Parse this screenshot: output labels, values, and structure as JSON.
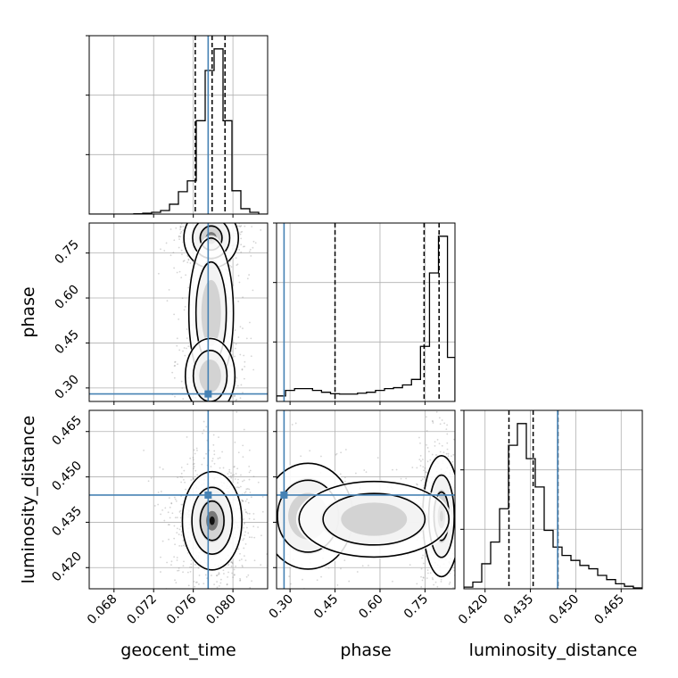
{
  "chart_data": {
    "type": "corner",
    "parameters": [
      "geocent_time",
      "phase",
      "luminosity_distance"
    ],
    "truths": {
      "geocent_time": 0.0775,
      "phase": 0.28,
      "luminosity_distance": 0.444
    },
    "colors": {
      "truth": "#4682b4",
      "hist": "#000000",
      "grid": "#b0b0b0",
      "scatter": "#888888"
    },
    "grid": true,
    "ranges": {
      "geocent_time": [
        0.0655,
        0.0835
      ],
      "phase": [
        0.255,
        0.85
      ],
      "luminosity_distance": [
        0.413,
        0.472
      ]
    },
    "ticks": {
      "geocent_time": [
        "0.068",
        "0.072",
        "0.076",
        "0.080"
      ],
      "phase": [
        "0.30",
        "0.45",
        "0.60",
        "0.75"
      ],
      "luminosity_distance": [
        "0.420",
        "0.435",
        "0.450",
        "0.465"
      ]
    },
    "tick_values": {
      "geocent_time": [
        0.068,
        0.072,
        0.076,
        0.08
      ],
      "phase": [
        0.3,
        0.45,
        0.6,
        0.75
      ],
      "luminosity_distance": [
        0.42,
        0.435,
        0.45,
        0.465
      ]
    },
    "histograms": {
      "geocent_time": {
        "edges": [
          0.0655,
          0.0664,
          0.0673,
          0.0682,
          0.0691,
          0.07,
          0.0709,
          0.0718,
          0.0727,
          0.0736,
          0.0745,
          0.0754,
          0.0763,
          0.0772,
          0.0781,
          0.079,
          0.0799,
          0.0808,
          0.0817,
          0.0826,
          0.0835
        ],
        "counts": [
          0,
          0,
          0,
          0,
          0,
          0.2,
          0.5,
          1.0,
          2.0,
          5.5,
          12.5,
          18.5,
          52.0,
          80.0,
          92.0,
          52.0,
          13.0,
          3.0,
          1.0,
          0
        ],
        "quantiles": [
          0.0762,
          0.0779,
          0.0792
        ]
      },
      "phase": {
        "edges": [
          0.255,
          0.285,
          0.315,
          0.345,
          0.375,
          0.405,
          0.435,
          0.465,
          0.495,
          0.525,
          0.555,
          0.585,
          0.615,
          0.645,
          0.675,
          0.705,
          0.735,
          0.765,
          0.795,
          0.825,
          0.85
        ],
        "counts": [
          3.0,
          6.0,
          7.0,
          7.0,
          6.0,
          5.0,
          4.2,
          4.0,
          4.0,
          4.5,
          5.0,
          6.0,
          7.0,
          7.5,
          9.0,
          12.0,
          30.0,
          70.0,
          90.0,
          24.0
        ],
        "quantiles": [
          0.45,
          0.747,
          0.797
        ]
      },
      "luminosity_distance": {
        "edges": [
          0.413,
          0.41595,
          0.4189,
          0.42185,
          0.4248,
          0.42775,
          0.4307,
          0.43365,
          0.4366,
          0.43955,
          0.4425,
          0.44545,
          0.4484,
          0.45135,
          0.4543,
          0.45725,
          0.4602,
          0.46315,
          0.4661,
          0.46905,
          0.472
        ],
        "counts": [
          1.0,
          4.0,
          15.0,
          28.0,
          48.0,
          86.0,
          99.0,
          78.0,
          61.0,
          35.0,
          25.0,
          20.0,
          17.0,
          14.0,
          12.0,
          8.0,
          5.5,
          3.0,
          1.5,
          0.5
        ],
        "quantiles": [
          0.4279,
          0.4359,
          0.4441
        ]
      }
    },
    "densities_2d": [
      {
        "x": "geocent_time",
        "y": "phase",
        "blobs": [
          {
            "cx": 0.0778,
            "cy": 0.8,
            "sx": 0.0011,
            "sy": 0.04,
            "w": 1.0
          },
          {
            "cx": 0.0778,
            "cy": 0.55,
            "sx": 0.0009,
            "sy": 0.1,
            "w": 0.45
          },
          {
            "cx": 0.0777,
            "cy": 0.34,
            "sx": 0.001,
            "sy": 0.05,
            "w": 0.45
          }
        ]
      },
      {
        "x": "geocent_time",
        "y": "luminosity_distance",
        "blobs": [
          {
            "cx": 0.0779,
            "cy": 0.4355,
            "sx": 0.0012,
            "sy": 0.0065,
            "w": 1.0
          }
        ]
      },
      {
        "x": "phase",
        "y": "luminosity_distance",
        "blobs": [
          {
            "cx": 0.805,
            "cy": 0.437,
            "sx": 0.025,
            "sy": 0.008,
            "w": 1.0
          },
          {
            "cx": 0.36,
            "cy": 0.437,
            "sx": 0.06,
            "sy": 0.007,
            "w": 0.35
          },
          {
            "cx": 0.58,
            "cy": 0.436,
            "sx": 0.1,
            "sy": 0.005,
            "w": 0.22
          }
        ]
      }
    ]
  }
}
